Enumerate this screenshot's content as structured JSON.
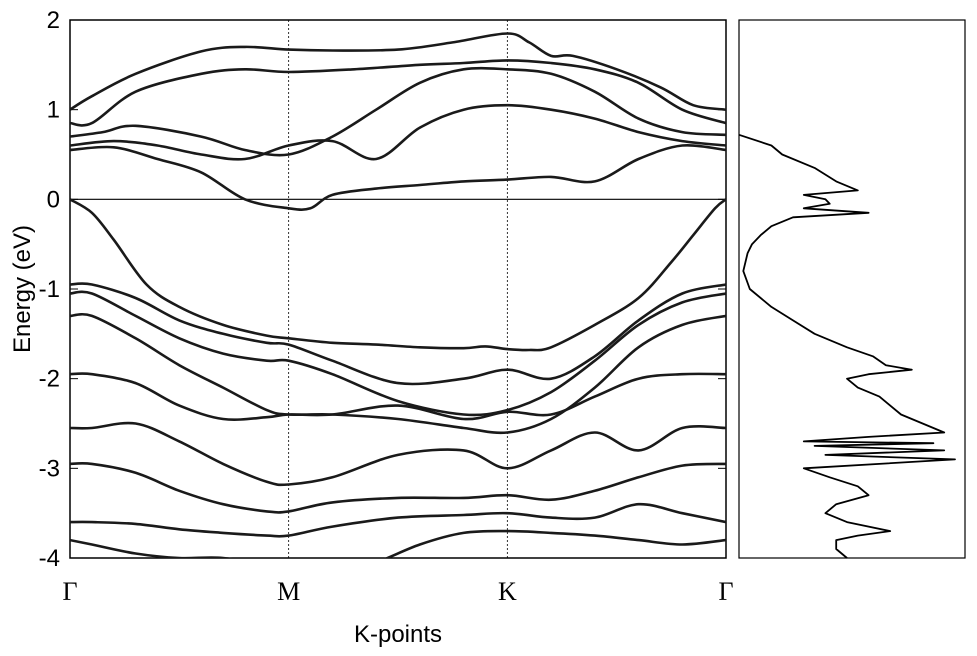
{
  "chart_data": [
    {
      "type": "line",
      "subtype": "band-structure",
      "title": "",
      "xlabel": "K-points",
      "ylabel": "Energy (eV)",
      "ylim": [
        -4,
        2
      ],
      "yticks": [
        -4,
        -3,
        -2,
        -1,
        0,
        1,
        2
      ],
      "ytick_labels": [
        "-4",
        "-3",
        "-2",
        "-1",
        "0",
        "1",
        "2"
      ],
      "xlim": [
        0,
        3
      ],
      "kpoints": [
        {
          "label": "Γ",
          "x": 0
        },
        {
          "label": "M",
          "x": 1
        },
        {
          "label": "K",
          "x": 2
        },
        {
          "label": "Γ",
          "x": 3
        }
      ],
      "fermi_level": 0,
      "grid": "vertical dotted lines at high-symmetry points",
      "legend": "none",
      "series": [
        {
          "x": [
            0,
            0.1,
            0.3,
            0.6,
            0.8,
            1.0,
            1.2,
            1.5,
            1.75,
            2.0,
            2.1,
            2.2,
            2.3,
            2.5,
            2.7,
            2.85,
            3.0
          ],
          "values": [
            1.0,
            1.15,
            1.4,
            1.65,
            1.7,
            1.67,
            1.66,
            1.67,
            1.75,
            1.85,
            1.75,
            1.6,
            1.6,
            1.45,
            1.25,
            1.05,
            1.0
          ]
        },
        {
          "x": [
            0,
            0.1,
            0.3,
            0.6,
            0.8,
            1.0,
            1.3,
            1.6,
            1.8,
            2.0,
            2.2,
            2.4,
            2.6,
            2.8,
            3.0
          ],
          "values": [
            0.85,
            0.85,
            1.2,
            1.4,
            1.45,
            1.42,
            1.45,
            1.5,
            1.52,
            1.55,
            1.52,
            1.45,
            1.3,
            1.0,
            0.85
          ]
        },
        {
          "x": [
            0,
            0.15,
            0.3,
            0.6,
            0.8,
            1.0,
            1.2,
            1.4,
            1.6,
            1.8,
            2.0,
            2.2,
            2.4,
            2.6,
            2.8,
            3.0
          ],
          "values": [
            0.7,
            0.75,
            0.82,
            0.7,
            0.55,
            0.5,
            0.7,
            1.0,
            1.3,
            1.45,
            1.45,
            1.4,
            1.2,
            0.9,
            0.75,
            0.72
          ]
        },
        {
          "x": [
            0,
            0.2,
            0.4,
            0.6,
            0.8,
            1.0,
            1.2,
            1.4,
            1.6,
            1.8,
            2.0,
            2.2,
            2.4,
            2.6,
            2.8,
            3.0
          ],
          "values": [
            0.6,
            0.65,
            0.6,
            0.5,
            0.45,
            0.6,
            0.65,
            0.45,
            0.8,
            1.0,
            1.05,
            1.0,
            0.9,
            0.75,
            0.65,
            0.6
          ]
        },
        {
          "x": [
            0,
            0.2,
            0.4,
            0.6,
            0.8,
            1.0,
            1.1,
            1.2,
            1.4,
            1.6,
            1.8,
            2.0,
            2.2,
            2.4,
            2.6,
            2.8,
            3.0
          ],
          "values": [
            0.55,
            0.58,
            0.45,
            0.3,
            0.0,
            -0.1,
            -0.1,
            0.05,
            0.12,
            0.16,
            0.2,
            0.22,
            0.25,
            0.2,
            0.45,
            0.6,
            0.55
          ]
        },
        {
          "x": [
            0,
            0.1,
            0.2,
            0.35,
            0.5,
            0.7,
            0.9,
            1.0,
            1.2,
            1.4,
            1.6,
            1.8,
            1.9,
            2.0,
            2.1,
            2.2,
            2.4,
            2.6,
            2.75,
            2.85,
            2.95,
            3.0
          ],
          "values": [
            0,
            -0.15,
            -0.45,
            -0.95,
            -1.2,
            -1.4,
            -1.52,
            -1.55,
            -1.6,
            -1.62,
            -1.65,
            -1.66,
            -1.64,
            -1.67,
            -1.68,
            -1.65,
            -1.4,
            -1.1,
            -0.7,
            -0.4,
            -0.1,
            0
          ]
        },
        {
          "x": [
            0,
            0.1,
            0.3,
            0.5,
            0.7,
            0.9,
            1.0,
            1.2,
            1.5,
            1.8,
            2.0,
            2.2,
            2.4,
            2.6,
            2.8,
            3.0
          ],
          "values": [
            -0.95,
            -0.95,
            -1.1,
            -1.35,
            -1.5,
            -1.6,
            -1.62,
            -1.8,
            -2.05,
            -2.0,
            -1.9,
            -2.0,
            -1.75,
            -1.35,
            -1.05,
            -0.95
          ]
        },
        {
          "x": [
            0,
            0.1,
            0.3,
            0.5,
            0.7,
            0.9,
            1.0,
            1.2,
            1.5,
            1.8,
            2.0,
            2.2,
            2.4,
            2.6,
            2.8,
            3.0
          ],
          "values": [
            -1.05,
            -1.05,
            -1.3,
            -1.55,
            -1.72,
            -1.8,
            -1.8,
            -1.95,
            -2.25,
            -2.4,
            -2.35,
            -2.15,
            -1.8,
            -1.4,
            -1.15,
            -1.05
          ]
        },
        {
          "x": [
            0,
            0.1,
            0.3,
            0.5,
            0.7,
            0.9,
            1.0,
            1.2,
            1.5,
            1.8,
            2.0,
            2.2,
            2.4,
            2.6,
            2.8,
            3.0
          ],
          "values": [
            -1.3,
            -1.3,
            -1.55,
            -1.85,
            -2.1,
            -2.35,
            -2.4,
            -2.4,
            -2.45,
            -2.55,
            -2.6,
            -2.45,
            -2.1,
            -1.65,
            -1.4,
            -1.3
          ]
        },
        {
          "x": [
            0,
            0.1,
            0.3,
            0.5,
            0.7,
            0.9,
            1.0,
            1.2,
            1.5,
            1.8,
            2.0,
            2.2,
            2.4,
            2.6,
            2.8,
            3.0
          ],
          "values": [
            -1.95,
            -1.95,
            -2.05,
            -2.3,
            -2.45,
            -2.43,
            -2.4,
            -2.4,
            -2.3,
            -2.45,
            -2.37,
            -2.4,
            -2.2,
            -2.0,
            -1.95,
            -1.95
          ]
        },
        {
          "x": [
            0,
            0.1,
            0.3,
            0.5,
            0.7,
            0.9,
            1.0,
            1.2,
            1.5,
            1.8,
            2.0,
            2.2,
            2.4,
            2.6,
            2.8,
            3.0
          ],
          "values": [
            -2.55,
            -2.55,
            -2.5,
            -2.7,
            -2.95,
            -3.15,
            -3.18,
            -3.1,
            -2.85,
            -2.8,
            -3.0,
            -2.8,
            -2.6,
            -2.8,
            -2.55,
            -2.55
          ]
        },
        {
          "x": [
            0,
            0.1,
            0.3,
            0.5,
            0.7,
            0.9,
            1.0,
            1.2,
            1.5,
            1.8,
            2.0,
            2.2,
            2.4,
            2.6,
            2.8,
            3.0
          ],
          "values": [
            -2.95,
            -2.95,
            -3.05,
            -3.25,
            -3.4,
            -3.48,
            -3.48,
            -3.38,
            -3.33,
            -3.33,
            -3.3,
            -3.35,
            -3.25,
            -3.1,
            -2.97,
            -2.95
          ]
        },
        {
          "x": [
            0,
            0.1,
            0.3,
            0.5,
            0.7,
            0.9,
            1.0,
            1.2,
            1.5,
            1.8,
            2.0,
            2.2,
            2.4,
            2.6,
            2.8,
            3.0
          ],
          "values": [
            -3.6,
            -3.6,
            -3.62,
            -3.68,
            -3.72,
            -3.75,
            -3.75,
            -3.65,
            -3.55,
            -3.52,
            -3.5,
            -3.55,
            -3.55,
            -3.4,
            -3.5,
            -3.6
          ]
        },
        {
          "x": [
            0,
            0.1,
            0.3,
            0.5,
            0.7,
            0.9,
            1.0,
            1.2,
            1.4,
            1.6,
            1.8,
            2.0,
            2.2,
            2.4,
            2.6,
            2.8,
            3.0
          ],
          "values": [
            -3.8,
            -3.85,
            -3.95,
            -4.0,
            -4.0,
            -4.1,
            -4.2,
            -4.2,
            -4.05,
            -3.85,
            -3.72,
            -3.7,
            -3.72,
            -3.75,
            -3.8,
            -3.85,
            -3.8
          ]
        }
      ]
    },
    {
      "type": "line",
      "subtype": "density-of-states",
      "title": "",
      "xlabel": "",
      "ylabel": "",
      "ylim": [
        -4,
        2
      ],
      "xlim": [
        0,
        1
      ],
      "legend": "none",
      "series": [
        {
          "energy": [
            0.72,
            0.6,
            0.5,
            0.35,
            0.2,
            0.1,
            0.05,
            0.0,
            -0.05,
            -0.1,
            -0.15,
            -0.2,
            -0.3,
            -0.4,
            -0.5,
            -0.6,
            -0.8,
            -1.0,
            -1.2,
            -1.35,
            -1.5,
            -1.65,
            -1.75,
            -1.85,
            -1.9,
            -1.95,
            -2.0,
            -2.1,
            -2.2,
            -2.3,
            -2.4,
            -2.5,
            -2.6,
            -2.65,
            -2.7,
            -2.72,
            -2.75,
            -2.8,
            -2.85,
            -2.9,
            -3.0,
            -3.1,
            -3.2,
            -3.3,
            -3.4,
            -3.5,
            -3.6,
            -3.7,
            -3.75,
            -3.8,
            -3.9,
            -4.0
          ],
          "dos": [
            0.0,
            0.15,
            0.2,
            0.35,
            0.45,
            0.55,
            0.3,
            0.4,
            0.42,
            0.3,
            0.6,
            0.25,
            0.15,
            0.1,
            0.06,
            0.04,
            0.02,
            0.05,
            0.15,
            0.25,
            0.35,
            0.5,
            0.62,
            0.68,
            0.8,
            0.6,
            0.5,
            0.55,
            0.65,
            0.7,
            0.75,
            0.85,
            0.95,
            0.6,
            0.3,
            0.9,
            0.35,
            0.95,
            0.4,
            1.0,
            0.3,
            0.42,
            0.55,
            0.6,
            0.45,
            0.4,
            0.5,
            0.7,
            0.55,
            0.45,
            0.45,
            0.5
          ]
        }
      ]
    }
  ]
}
